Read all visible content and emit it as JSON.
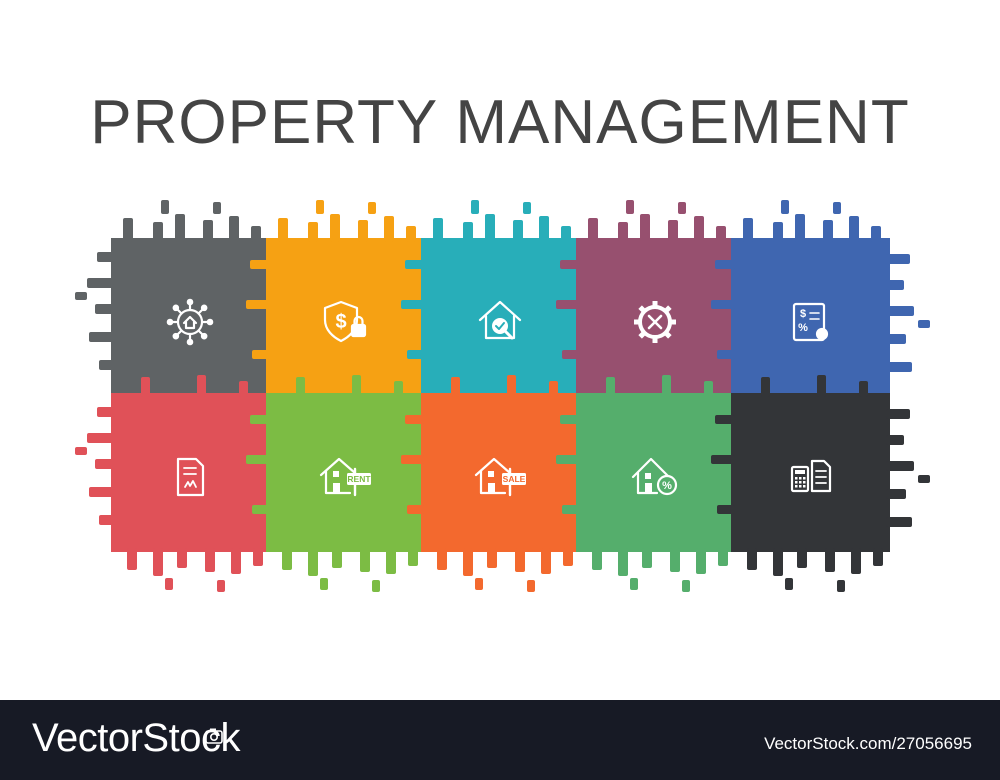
{
  "title": "PROPERTY MANAGEMENT",
  "tiles": [
    {
      "color": "#5f6365",
      "icon": "home-network-icon"
    },
    {
      "color": "#f6a113",
      "icon": "shield-dollar-lock-icon"
    },
    {
      "color": "#28aeb9",
      "icon": "house-magnifier-check-icon"
    },
    {
      "color": "#97506f",
      "icon": "gear-tools-icon"
    },
    {
      "color": "#3f66b0",
      "icon": "certificate-dollar-percent-icon"
    },
    {
      "color": "#e05158",
      "icon": "document-icon"
    },
    {
      "color": "#7cbc44",
      "icon": "house-rent-sign-icon"
    },
    {
      "color": "#f3692e",
      "icon": "house-sale-sign-icon"
    },
    {
      "color": "#55ae6c",
      "icon": "house-percent-icon"
    },
    {
      "color": "#333538",
      "icon": "calculator-document-icon"
    }
  ],
  "icon_text": {
    "rent": "RENT",
    "sale": "SALE"
  },
  "footer": {
    "brand": "VectorStock",
    "image_id": "VectorStock.com/27056695"
  }
}
